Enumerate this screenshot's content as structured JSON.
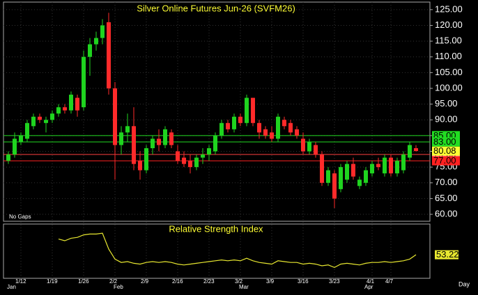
{
  "chart_data": {
    "type": "candlestick",
    "title": "Silver Online Futures Jun-26 (SVFM26)",
    "note": "No Gaps",
    "period": "Day",
    "categories": [
      null,
      null,
      "1/12",
      null,
      null,
      null,
      null,
      "1/19",
      null,
      null,
      null,
      null,
      "1/26",
      null,
      null,
      null,
      null,
      "2/2",
      null,
      null,
      null,
      null,
      "2/9",
      null,
      null,
      null,
      null,
      "2/16",
      null,
      null,
      null,
      null,
      "2/23",
      null,
      null,
      null,
      null,
      "3/2",
      null,
      null,
      null,
      null,
      "3/9",
      null,
      null,
      null,
      null,
      "3/16",
      null,
      null,
      null,
      null,
      "3/23",
      null,
      null,
      null,
      null,
      null,
      "4/1",
      null,
      null,
      "4/7",
      null,
      null,
      null,
      null
    ],
    "months": [
      "Jan",
      null,
      null,
      null,
      null,
      null,
      null,
      null,
      null,
      null,
      null,
      null,
      null,
      null,
      null,
      null,
      null,
      "Feb",
      null,
      null,
      null,
      null,
      null,
      null,
      null,
      null,
      null,
      null,
      null,
      null,
      null,
      null,
      null,
      null,
      null,
      null,
      null,
      "Mar",
      null,
      null,
      null,
      null,
      null,
      null,
      null,
      null,
      null,
      null,
      null,
      null,
      null,
      null,
      null,
      null,
      null,
      null,
      null,
      "Apr",
      null,
      null,
      null,
      null,
      null,
      null,
      null
    ],
    "open": [
      77,
      79,
      83,
      84,
      88,
      91,
      89,
      90,
      92,
      94,
      93,
      97,
      94,
      110,
      114,
      116,
      121,
      100,
      82,
      86,
      88,
      77,
      74,
      81,
      84,
      82,
      86,
      80,
      78,
      77,
      75,
      78,
      79,
      80,
      85,
      89,
      87,
      91,
      89,
      97,
      89,
      87,
      86,
      84,
      90,
      89,
      87,
      84,
      80,
      82,
      79,
      70,
      73,
      68,
      71,
      76,
      69,
      70,
      73,
      76,
      73,
      78,
      73,
      74,
      78,
      81
    ],
    "high": [
      80,
      86,
      86,
      90,
      92,
      92,
      91,
      93,
      95,
      95,
      99,
      98,
      112,
      116,
      118,
      122,
      124,
      102,
      88,
      92,
      94,
      80,
      82,
      85,
      87,
      88,
      87,
      82,
      80,
      79,
      79,
      81,
      82,
      86,
      90,
      90,
      92,
      92,
      98,
      97,
      90,
      88,
      88,
      92,
      91,
      90,
      88,
      86,
      84,
      83,
      80,
      75,
      74,
      76,
      77,
      78,
      72,
      75,
      77,
      78,
      79,
      79,
      78,
      80,
      83,
      82
    ],
    "low": [
      76,
      78,
      82,
      83,
      87,
      89,
      86,
      89,
      91,
      92,
      92,
      91,
      93,
      104,
      112,
      114,
      98,
      71,
      79,
      83,
      74,
      71,
      73,
      79,
      80,
      81,
      81,
      76,
      75,
      73,
      74,
      76,
      77,
      79,
      84,
      86,
      86,
      88,
      88,
      88,
      84,
      84,
      83,
      83,
      87,
      85,
      84,
      79,
      79,
      78,
      69,
      69,
      62,
      67,
      70,
      71,
      68,
      69,
      72,
      74,
      72,
      72,
      72,
      73,
      77,
      80
    ],
    "close": [
      79,
      84,
      85,
      89,
      91,
      90,
      90,
      92,
      94,
      93,
      98,
      93,
      110,
      114,
      116,
      120,
      100,
      82,
      86,
      88,
      76,
      74,
      81,
      84,
      82,
      87,
      82,
      77,
      76,
      75,
      78,
      79,
      81,
      85,
      89,
      87,
      91,
      89,
      97,
      89,
      86,
      85,
      84,
      91,
      88,
      86,
      85,
      80,
      83,
      79,
      70,
      74,
      65,
      75,
      76,
      72,
      71,
      74,
      76,
      75,
      78,
      73,
      77,
      79,
      82,
      80.08
    ],
    "up_color": "#1fd41f",
    "down_color": "#ff2a2a",
    "ylim": [
      57.8,
      127.4
    ],
    "yticks": [
      {
        "value": 125,
        "label": "125.00"
      },
      {
        "value": 120,
        "label": "120.00"
      },
      {
        "value": 115,
        "label": "115.00"
      },
      {
        "value": 110,
        "label": "110.00"
      },
      {
        "value": 105,
        "label": "105.00"
      },
      {
        "value": 100,
        "label": "100.00"
      },
      {
        "value": 95,
        "label": "95.00"
      },
      {
        "value": 90,
        "label": "90.00"
      },
      {
        "value": 85,
        "label": "85.00"
      },
      {
        "value": 80,
        "label": "80.00"
      },
      {
        "value": 75,
        "label": "75.00"
      },
      {
        "value": 70,
        "label": "70.00"
      },
      {
        "value": 65,
        "label": "65.00"
      },
      {
        "value": 60,
        "label": "60.00"
      }
    ],
    "levels": [
      {
        "value": 85,
        "label": "85.00",
        "color": "#22dd22",
        "bg": "#22dd22"
      },
      {
        "value": 83,
        "label": "83.00",
        "color": "#22dd22",
        "bg": "#22dd22"
      },
      {
        "value": 79,
        "label": "79.00",
        "color": "#ff4040",
        "bg": "#ff9f9f"
      },
      {
        "value": 77,
        "label": "77.00",
        "color": "#ff2020",
        "bg": "#ff2020"
      }
    ],
    "last_color": "#ffff33",
    "rsi": {
      "title": "Relative Strength Index",
      "color": "#e8e830",
      "ylim": [
        25,
        90
      ],
      "values": [
        null,
        null,
        null,
        null,
        null,
        null,
        null,
        null,
        72,
        70,
        73,
        74,
        77,
        78,
        78,
        79,
        60,
        48,
        44,
        45,
        43,
        42,
        44,
        45,
        44,
        45,
        44,
        42,
        41,
        42,
        43,
        44,
        45,
        46,
        47,
        46,
        47,
        46,
        49,
        46,
        44,
        43,
        42,
        46,
        45,
        44,
        44,
        42,
        43,
        42,
        40,
        41,
        38,
        42,
        43,
        42,
        41,
        43,
        44,
        44,
        45,
        44,
        45,
        46,
        48,
        53.22
      ]
    }
  }
}
